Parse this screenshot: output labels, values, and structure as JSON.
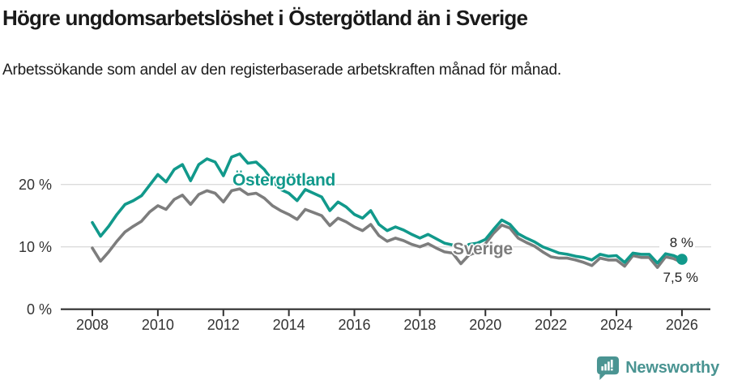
{
  "chart_data": {
    "type": "line",
    "title": "Högre ungdomsarbetslöshet i Östergötland än i Sverige",
    "subtitle": "Arbetssökande som andel av den registerbaserade arbetskraften månad för månad.",
    "x_start": 2008,
    "x_step": 0.25,
    "x_ticks": [
      2008,
      2010,
      2012,
      2014,
      2016,
      2018,
      2020,
      2022,
      2024,
      2026
    ],
    "y_ticks": [
      {
        "value": 0,
        "label": "0 %"
      },
      {
        "value": 10,
        "label": "10 %"
      },
      {
        "value": 20,
        "label": "20 %"
      }
    ],
    "ylim": [
      0,
      28
    ],
    "grid": "horizontal",
    "legend": "inline-labels",
    "series": [
      {
        "name": "Sverige",
        "color": "#7d7d7d",
        "values": [
          9.8,
          7.7,
          9.2,
          10.9,
          12.4,
          13.3,
          14.1,
          15.6,
          16.6,
          16.0,
          17.6,
          18.3,
          16.8,
          18.4,
          19.0,
          18.6,
          17.2,
          19.0,
          19.3,
          18.4,
          18.6,
          17.8,
          16.6,
          15.8,
          15.2,
          14.4,
          16.0,
          15.5,
          15.0,
          13.4,
          14.6,
          14.0,
          13.2,
          12.6,
          13.6,
          11.8,
          10.9,
          11.4,
          11.0,
          10.4,
          10.0,
          10.5,
          9.8,
          9.2,
          9.0,
          7.3,
          8.7,
          9.2,
          10.5,
          12.2,
          13.5,
          13.0,
          11.4,
          10.7,
          10.1,
          9.2,
          8.4,
          8.2,
          8.2,
          7.9,
          7.5,
          7.0,
          8.2,
          7.9,
          7.9,
          6.9,
          8.6,
          8.3,
          8.3,
          6.7,
          8.4,
          8.1,
          7.5
        ]
      },
      {
        "name": "Östergötland",
        "color": "#11998b",
        "values": [
          13.9,
          11.7,
          13.3,
          15.2,
          16.8,
          17.4,
          18.2,
          19.9,
          21.6,
          20.4,
          22.4,
          23.2,
          20.6,
          23.2,
          24.1,
          23.6,
          21.4,
          24.4,
          24.9,
          23.4,
          23.6,
          22.4,
          20.6,
          19.2,
          18.6,
          17.4,
          19.2,
          18.6,
          18.0,
          15.8,
          17.2,
          16.4,
          15.2,
          14.6,
          15.8,
          13.6,
          12.6,
          13.2,
          12.7,
          12.0,
          11.4,
          12.0,
          11.3,
          10.6,
          10.3,
          9.4,
          10.4,
          10.6,
          11.2,
          12.8,
          14.3,
          13.6,
          12.1,
          11.4,
          10.8,
          10.0,
          9.5,
          9.0,
          8.8,
          8.5,
          8.3,
          7.9,
          8.8,
          8.5,
          8.6,
          7.5,
          9.0,
          8.8,
          8.8,
          7.4,
          8.9,
          8.6,
          8.0
        ]
      }
    ],
    "end_labels": {
      "ostergotland": "8 %",
      "sverige": "7,5 %"
    },
    "end_dot": {
      "series": "Östergötland",
      "value": 8.0
    }
  },
  "footer": {
    "brand": "Newsworthy"
  },
  "colors": {
    "accent_teal": "#11998b",
    "series_gray": "#7d7d7d",
    "logo_teal": "#4a9492",
    "grid": "#dbdbdb",
    "axis": "#2e2e2e",
    "tick_text": "#333333"
  }
}
